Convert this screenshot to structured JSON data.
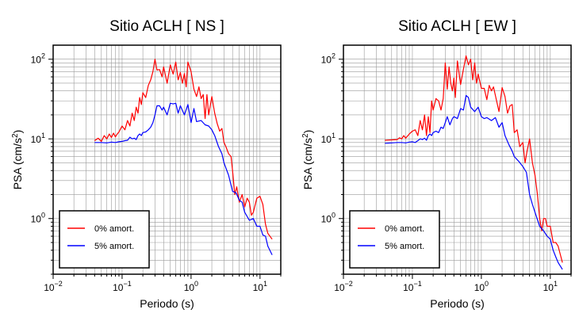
{
  "chart_data": [
    {
      "type": "line",
      "title": "Sitio ACLH [ NS ]",
      "xlabel": "Periodo (s)",
      "ylabel": "PSA (cm/s²)",
      "xscale": "log",
      "yscale": "log",
      "xlim": [
        0.01,
        20
      ],
      "ylim": [
        0.2,
        150
      ],
      "grid": true,
      "legend_position": "bottom-left",
      "x_ticks": [
        {
          "value": 0.01,
          "base": "10",
          "exp": "−2"
        },
        {
          "value": 0.1,
          "base": "10",
          "exp": "−1"
        },
        {
          "value": 1,
          "base": "10",
          "exp": "0"
        },
        {
          "value": 10,
          "base": "10",
          "exp": "1"
        }
      ],
      "y_ticks": [
        {
          "value": 1,
          "base": "10",
          "exp": "0"
        },
        {
          "value": 10,
          "base": "10",
          "exp": "1"
        },
        {
          "value": 100,
          "base": "10",
          "exp": "2"
        }
      ],
      "series": [
        {
          "name": "0% amort.",
          "color": "#ff0000",
          "x": [
            0.04,
            0.045,
            0.05,
            0.055,
            0.06,
            0.065,
            0.07,
            0.075,
            0.08,
            0.085,
            0.09,
            0.1,
            0.11,
            0.12,
            0.13,
            0.14,
            0.15,
            0.16,
            0.17,
            0.18,
            0.19,
            0.2,
            0.22,
            0.24,
            0.26,
            0.28,
            0.3,
            0.32,
            0.35,
            0.38,
            0.4,
            0.45,
            0.5,
            0.55,
            0.6,
            0.65,
            0.7,
            0.75,
            0.8,
            0.85,
            0.9,
            1.0,
            1.1,
            1.2,
            1.3,
            1.4,
            1.5,
            1.6,
            1.7,
            1.8,
            2.0,
            2.2,
            2.4,
            2.6,
            2.8,
            3.0,
            3.2,
            3.5,
            3.8,
            4.0,
            4.3,
            4.6,
            5.0,
            5.5,
            6.0,
            6.5,
            7.0,
            7.5,
            8.0,
            9.0,
            10.0,
            11.0,
            12.0,
            13.0,
            15.0
          ],
          "y": [
            9.5,
            10.2,
            9.3,
            11.0,
            10.0,
            11.5,
            10.4,
            11.8,
            10.6,
            11.5,
            12.2,
            14.5,
            13.0,
            17.0,
            14.5,
            21.0,
            17.0,
            25.0,
            21.0,
            33.0,
            27.0,
            38.0,
            33.0,
            47.0,
            55.0,
            70.0,
            100.0,
            73.0,
            74.0,
            60.0,
            80.0,
            50.0,
            85.0,
            65.0,
            92.0,
            55.0,
            68.0,
            50.0,
            66.0,
            45.0,
            92.0,
            70.0,
            42.0,
            34.0,
            45.0,
            32.0,
            36.0,
            18.0,
            36.0,
            20.0,
            34.0,
            21.0,
            15.5,
            12.5,
            13.5,
            9.0,
            8.0,
            6.5,
            6.0,
            4.0,
            2.0,
            2.5,
            1.6,
            2.0,
            1.4,
            1.8,
            1.6,
            1.1,
            1.2,
            1.8,
            1.9,
            1.5,
            0.85,
            0.65,
            0.55
          ]
        },
        {
          "name": "5% amort.",
          "color": "#0000ff",
          "x": [
            0.04,
            0.05,
            0.06,
            0.07,
            0.08,
            0.09,
            0.1,
            0.11,
            0.12,
            0.13,
            0.14,
            0.15,
            0.16,
            0.17,
            0.18,
            0.19,
            0.2,
            0.22,
            0.24,
            0.26,
            0.28,
            0.3,
            0.32,
            0.35,
            0.38,
            0.4,
            0.45,
            0.5,
            0.55,
            0.6,
            0.65,
            0.7,
            0.8,
            0.9,
            1.0,
            1.1,
            1.2,
            1.4,
            1.6,
            1.8,
            2.0,
            2.2,
            2.5,
            2.8,
            3.0,
            3.5,
            4.0,
            4.5,
            5.0,
            5.5,
            6.0,
            7.0,
            8.0,
            9.0,
            10.0,
            11.0,
            12.0,
            13.0,
            15.0
          ],
          "y": [
            9.0,
            9.0,
            8.9,
            9.1,
            9.0,
            9.2,
            9.3,
            9.5,
            9.6,
            10.5,
            10.0,
            10.2,
            9.8,
            11.0,
            11.5,
            11.0,
            12.0,
            12.2,
            13.0,
            14.0,
            16.0,
            20.0,
            26.0,
            26.0,
            23.0,
            25.0,
            20.0,
            28.0,
            27.5,
            28.0,
            21.0,
            26.0,
            20.0,
            27.0,
            16.0,
            24.0,
            16.5,
            17.0,
            15.0,
            14.5,
            13.0,
            11.0,
            8.0,
            6.5,
            5.0,
            3.5,
            2.2,
            2.1,
            1.7,
            1.6,
            1.2,
            0.95,
            1.0,
            0.8,
            0.8,
            0.62,
            0.6,
            0.45,
            0.35
          ]
        }
      ]
    },
    {
      "type": "line",
      "title": "Sitio ACLH [ EW ]",
      "xlabel": "Periodo (s)",
      "ylabel": "PSA (cm/s²)",
      "xscale": "log",
      "yscale": "log",
      "xlim": [
        0.01,
        20
      ],
      "ylim": [
        0.2,
        150
      ],
      "grid": true,
      "legend_position": "bottom-left",
      "x_ticks": [
        {
          "value": 0.01,
          "base": "10",
          "exp": "−2"
        },
        {
          "value": 0.1,
          "base": "10",
          "exp": "−1"
        },
        {
          "value": 1,
          "base": "10",
          "exp": "0"
        },
        {
          "value": 10,
          "base": "10",
          "exp": "1"
        }
      ],
      "y_ticks": [
        {
          "value": 1,
          "base": "10",
          "exp": "0"
        },
        {
          "value": 10,
          "base": "10",
          "exp": "1"
        },
        {
          "value": 100,
          "base": "10",
          "exp": "2"
        }
      ],
      "series": [
        {
          "name": "0% amort.",
          "color": "#ff0000",
          "x": [
            0.04,
            0.05,
            0.06,
            0.065,
            0.07,
            0.075,
            0.08,
            0.09,
            0.1,
            0.11,
            0.12,
            0.13,
            0.14,
            0.15,
            0.16,
            0.17,
            0.18,
            0.19,
            0.2,
            0.22,
            0.24,
            0.26,
            0.28,
            0.3,
            0.32,
            0.34,
            0.36,
            0.38,
            0.4,
            0.42,
            0.45,
            0.48,
            0.5,
            0.55,
            0.6,
            0.65,
            0.7,
            0.75,
            0.8,
            0.85,
            0.9,
            1.0,
            1.1,
            1.2,
            1.3,
            1.4,
            1.5,
            1.6,
            1.8,
            2.0,
            2.2,
            2.4,
            2.6,
            2.8,
            3.0,
            3.3,
            3.6,
            4.0,
            4.3,
            4.6,
            5.0,
            5.5,
            6.0,
            6.5,
            7.0,
            7.5,
            8.0,
            8.5,
            9.0,
            10.0,
            11.0,
            12.0,
            13.0,
            15.0
          ],
          "y": [
            9.6,
            9.7,
            9.8,
            10.3,
            10.0,
            11.0,
            10.2,
            11.5,
            12.5,
            13.0,
            11.0,
            17.0,
            13.0,
            20.0,
            11.0,
            19.0,
            12.0,
            30.0,
            23.0,
            32.0,
            30.0,
            23.0,
            32.0,
            90.0,
            42.0,
            80.0,
            50.0,
            40.0,
            58.0,
            33.0,
            95.0,
            62.0,
            48.0,
            75.0,
            110.0,
            85.0,
            100.0,
            55.0,
            90.0,
            50.0,
            65.0,
            43.0,
            43.0,
            31.0,
            47.0,
            40.0,
            45.0,
            35.0,
            22.0,
            44.0,
            34.0,
            21.0,
            26.0,
            27.0,
            12.0,
            13.0,
            8.0,
            9.0,
            5.0,
            7.0,
            10.0,
            5.0,
            3.5,
            2.0,
            1.0,
            0.7,
            1.0,
            1.0,
            0.8,
            0.8,
            0.5,
            0.5,
            0.45,
            0.28
          ]
        },
        {
          "name": "5% amort.",
          "color": "#0000ff",
          "x": [
            0.04,
            0.05,
            0.06,
            0.07,
            0.08,
            0.09,
            0.1,
            0.11,
            0.12,
            0.13,
            0.14,
            0.15,
            0.16,
            0.17,
            0.18,
            0.19,
            0.2,
            0.22,
            0.24,
            0.26,
            0.28,
            0.3,
            0.32,
            0.35,
            0.38,
            0.4,
            0.45,
            0.5,
            0.55,
            0.6,
            0.65,
            0.7,
            0.8,
            0.9,
            1.0,
            1.1,
            1.2,
            1.4,
            1.6,
            1.8,
            2.0,
            2.2,
            2.5,
            2.8,
            3.0,
            3.5,
            4.0,
            4.5,
            5.0,
            5.5,
            6.0,
            7.0,
            8.0,
            9.0,
            10.0,
            11.0,
            12.0,
            13.0,
            15.0
          ],
          "y": [
            8.8,
            8.9,
            9.0,
            9.0,
            8.9,
            9.1,
            9.2,
            9.0,
            9.5,
            10.0,
            9.8,
            10.2,
            9.6,
            11.0,
            11.5,
            11.0,
            12.0,
            12.5,
            12.0,
            14.0,
            13.5,
            16.0,
            19.0,
            15.0,
            18.0,
            19.0,
            18.0,
            24.0,
            23.0,
            35.0,
            33.0,
            25.0,
            22.0,
            25.0,
            19.0,
            18.0,
            18.5,
            17.0,
            18.5,
            14.0,
            16.0,
            11.0,
            8.5,
            7.0,
            6.0,
            5.2,
            4.5,
            3.8,
            2.0,
            1.5,
            1.2,
            0.8,
            0.7,
            0.6,
            0.55,
            0.4,
            0.33,
            0.28,
            0.23
          ]
        }
      ]
    }
  ]
}
